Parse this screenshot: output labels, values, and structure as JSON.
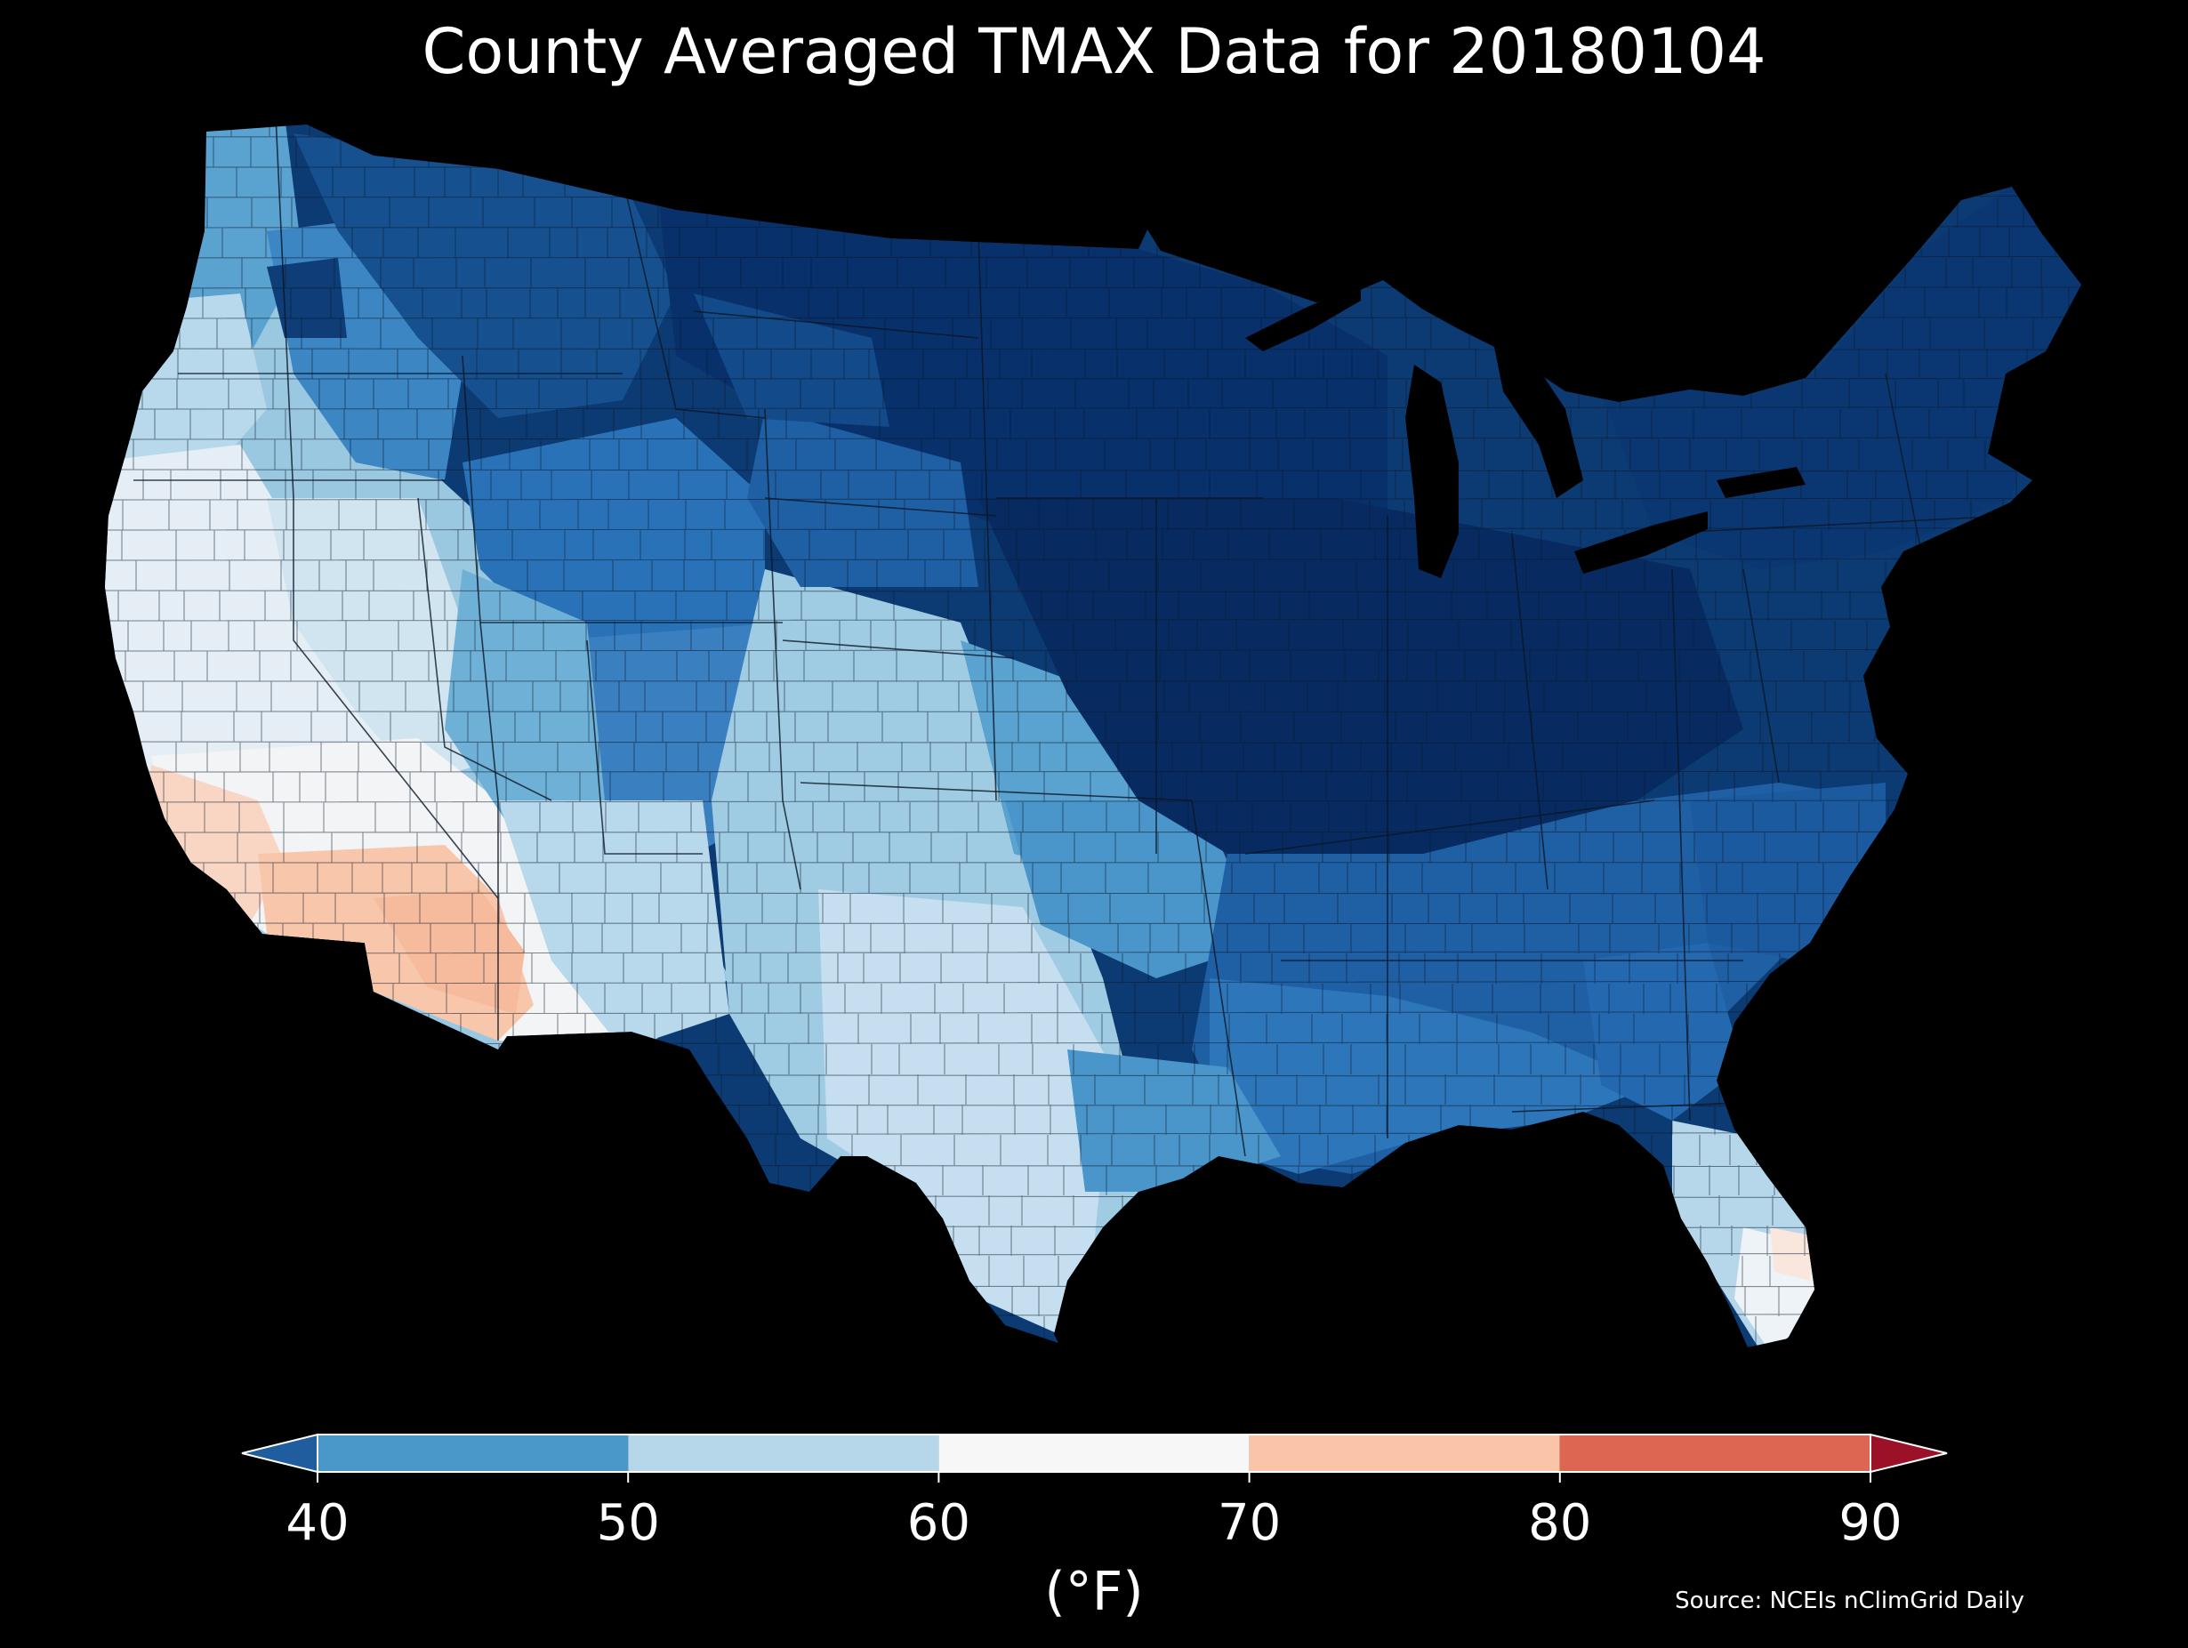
{
  "title": "County Averaged TMAX Data for 20180104",
  "colorbar": {
    "unit_label": "(°F)",
    "ticks": [
      "40",
      "50",
      "60",
      "70",
      "80",
      "90"
    ],
    "bins": [
      {
        "from": 40,
        "to": 50,
        "color": "#4a97c9"
      },
      {
        "from": 50,
        "to": 60,
        "color": "#b6d6ea"
      },
      {
        "from": 60,
        "to": 70,
        "color": "#f7f7f7"
      },
      {
        "from": 70,
        "to": 80,
        "color": "#f9c4a7"
      },
      {
        "from": 80,
        "to": 90,
        "color": "#dd6653"
      }
    ],
    "under_color": "#1f5d9f",
    "over_color": "#9b1128"
  },
  "source": "Source: NCEIs nClimGrid Daily",
  "colors": {
    "background": "#000000",
    "coldest": "#08306b",
    "very_cold": "#16508f",
    "cold": "#2a72b8",
    "cool": "#5aa2d0",
    "mild": "#9bc8e1",
    "pale": "#d1e5f0",
    "near_white": "#f2f4f6",
    "warm": "#f8c6aa"
  },
  "legend_placement": "bottom"
}
